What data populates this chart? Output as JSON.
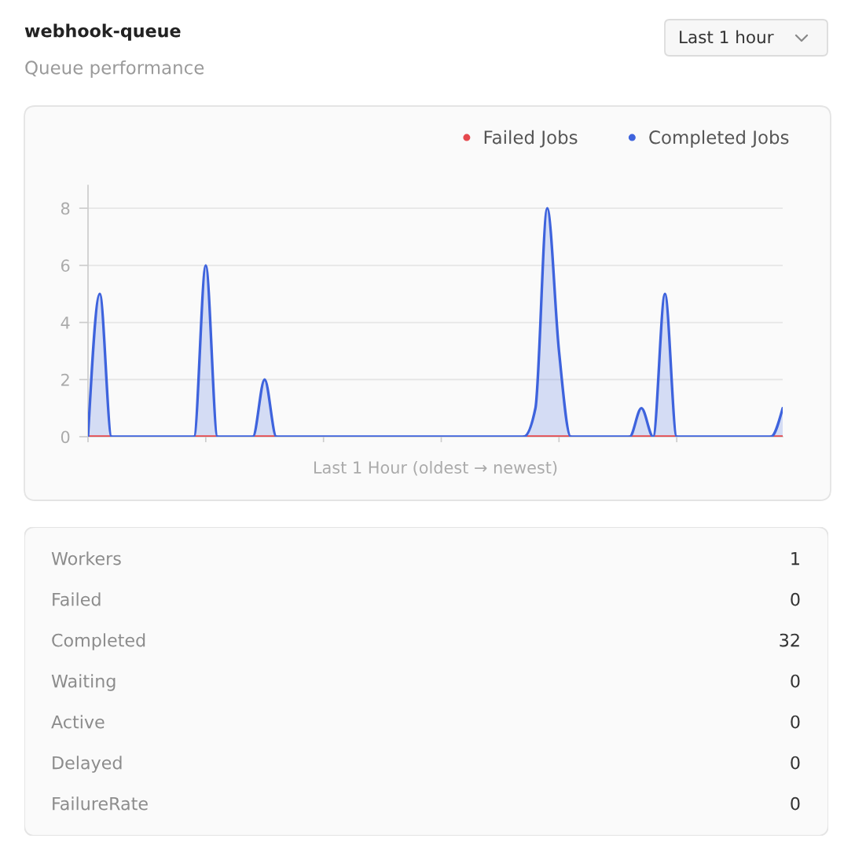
{
  "chart_data": [
    {
      "type": "area",
      "title": "webhook-queue",
      "subtitle": "Queue performance",
      "xlabel": "Last 1 Hour (oldest → newest)",
      "annotations": [
        "Last 1 hour"
      ],
      "categories": [
        null,
        null,
        null,
        null,
        null,
        null,
        null,
        null,
        null,
        null,
        null,
        null,
        null,
        null,
        null,
        null,
        null,
        null,
        null,
        null,
        null,
        null,
        null,
        null,
        null,
        null,
        null,
        null,
        null,
        null,
        null,
        null,
        null,
        null,
        null,
        null,
        null,
        null,
        null,
        null,
        null,
        null,
        null,
        null,
        null,
        null,
        null,
        null,
        null,
        null,
        null,
        null,
        null,
        null,
        null,
        null,
        null,
        null,
        null,
        null
      ],
      "series": [
        {
          "name": "Failed Jobs",
          "type": "line",
          "color": "#e5484d",
          "values": [
            0,
            0,
            0,
            null,
            null,
            null,
            null,
            null,
            null,
            0,
            0,
            0,
            null,
            null,
            0,
            0,
            0,
            null,
            null,
            null,
            null,
            null,
            null,
            null,
            null,
            null,
            null,
            null,
            null,
            null,
            null,
            null,
            null,
            null,
            null,
            null,
            null,
            0,
            0,
            0,
            0,
            0,
            null,
            null,
            null,
            null,
            0,
            0,
            0,
            0,
            0,
            null,
            null,
            null,
            null,
            null,
            null,
            null,
            0,
            0
          ]
        },
        {
          "name": "Completed Jobs",
          "color": "#3e63dd",
          "values": [
            0,
            5,
            0,
            0,
            0,
            0,
            0,
            0,
            0,
            0,
            6,
            0,
            0,
            0,
            0,
            2,
            0,
            0,
            0,
            0,
            0,
            0,
            0,
            0,
            0,
            0,
            0,
            0,
            0,
            0,
            0,
            0,
            0,
            0,
            0,
            0,
            0,
            0,
            1,
            8,
            3,
            0,
            0,
            0,
            0,
            0,
            0,
            1,
            0,
            5,
            0,
            0,
            0,
            0,
            0,
            0,
            0,
            0,
            0,
            1
          ]
        }
      ],
      "ylim": [
        0,
        8.8
      ],
      "yticks": [
        0,
        2,
        4,
        6,
        8
      ],
      "grid": "y",
      "legend": "top right",
      "tick_labels": "y"
    },
    {
      "type": "other",
      "categories": [
        "Workers",
        "Failed",
        "Completed",
        "Waiting",
        "Active",
        "Delayed",
        "FailureRate"
      ],
      "values": [
        1,
        0,
        32,
        0,
        0,
        0,
        0
      ],
      "data_labels": true
    }
  ]
}
